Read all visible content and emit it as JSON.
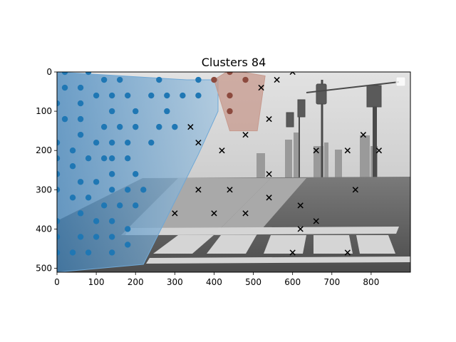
{
  "chart_data": {
    "type": "scatter",
    "title": "Clusters 84",
    "xlabel": "",
    "ylabel": "",
    "xlim": [
      0,
      900
    ],
    "ylim": [
      510,
      0
    ],
    "y_inverted": true,
    "grid": false,
    "legend": "top-right",
    "x_ticks": [
      0,
      100,
      200,
      300,
      400,
      500,
      600,
      700,
      800
    ],
    "y_ticks": [
      0,
      100,
      200,
      300,
      400,
      500
    ],
    "background": "grayscale street intersection photo",
    "series": [
      {
        "marker": "circle",
        "color": "#1f77b4",
        "hull_color": "#6fa8d6",
        "points": [
          [
            20,
            0
          ],
          [
            80,
            0
          ],
          [
            20,
            40
          ],
          [
            60,
            40
          ],
          [
            120,
            20
          ],
          [
            160,
            20
          ],
          [
            260,
            20
          ],
          [
            360,
            20
          ],
          [
            0,
            80
          ],
          [
            60,
            80
          ],
          [
            100,
            60
          ],
          [
            140,
            60
          ],
          [
            180,
            60
          ],
          [
            240,
            60
          ],
          [
            280,
            60
          ],
          [
            320,
            60
          ],
          [
            360,
            60
          ],
          [
            20,
            120
          ],
          [
            60,
            120
          ],
          [
            140,
            100
          ],
          [
            200,
            100
          ],
          [
            280,
            100
          ],
          [
            60,
            160
          ],
          [
            120,
            140
          ],
          [
            160,
            140
          ],
          [
            200,
            140
          ],
          [
            260,
            140
          ],
          [
            300,
            140
          ],
          [
            0,
            180
          ],
          [
            100,
            180
          ],
          [
            140,
            180
          ],
          [
            180,
            180
          ],
          [
            240,
            180
          ],
          [
            0,
            220
          ],
          [
            40,
            200
          ],
          [
            80,
            220
          ],
          [
            120,
            220
          ],
          [
            140,
            220
          ],
          [
            180,
            220
          ],
          [
            0,
            260
          ],
          [
            40,
            240
          ],
          [
            140,
            260
          ],
          [
            200,
            260
          ],
          [
            0,
            300
          ],
          [
            60,
            280
          ],
          [
            100,
            280
          ],
          [
            140,
            300
          ],
          [
            180,
            300
          ],
          [
            220,
            300
          ],
          [
            40,
            320
          ],
          [
            80,
            320
          ],
          [
            120,
            340
          ],
          [
            160,
            340
          ],
          [
            200,
            340
          ],
          [
            0,
            380
          ],
          [
            60,
            360
          ],
          [
            100,
            380
          ],
          [
            140,
            380
          ],
          [
            0,
            420
          ],
          [
            60,
            420
          ],
          [
            100,
            420
          ],
          [
            140,
            420
          ],
          [
            180,
            400
          ],
          [
            0,
            460
          ],
          [
            40,
            460
          ],
          [
            80,
            460
          ],
          [
            140,
            460
          ],
          [
            180,
            440
          ]
        ],
        "hull": [
          [
            0,
            0
          ],
          [
            330,
            20
          ],
          [
            410,
            20
          ],
          [
            410,
            100
          ],
          [
            360,
            210
          ],
          [
            220,
            490
          ],
          [
            0,
            510
          ]
        ]
      },
      {
        "marker": "circle",
        "color": "#8c4a3e",
        "hull_color": "#c79a8e",
        "points": [
          [
            400,
            20
          ],
          [
            440,
            0
          ],
          [
            480,
            20
          ],
          [
            440,
            60
          ],
          [
            440,
            100
          ]
        ],
        "hull": [
          [
            400,
            20
          ],
          [
            440,
            -5
          ],
          [
            530,
            10
          ],
          [
            510,
            150
          ],
          [
            440,
            150
          ]
        ]
      },
      {
        "marker": "x",
        "color": "#000000",
        "points": [
          [
            600,
            0
          ],
          [
            560,
            20
          ],
          [
            520,
            40
          ],
          [
            540,
            120
          ],
          [
            340,
            140
          ],
          [
            480,
            160
          ],
          [
            360,
            180
          ],
          [
            420,
            200
          ],
          [
            660,
            200
          ],
          [
            740,
            200
          ],
          [
            780,
            160
          ],
          [
            820,
            200
          ],
          [
            540,
            260
          ],
          [
            360,
            300
          ],
          [
            440,
            300
          ],
          [
            540,
            320
          ],
          [
            760,
            300
          ],
          [
            620,
            340
          ],
          [
            300,
            360
          ],
          [
            400,
            360
          ],
          [
            480,
            360
          ],
          [
            660,
            380
          ],
          [
            620,
            400
          ],
          [
            600,
            460
          ],
          [
            740,
            460
          ]
        ]
      }
    ]
  }
}
